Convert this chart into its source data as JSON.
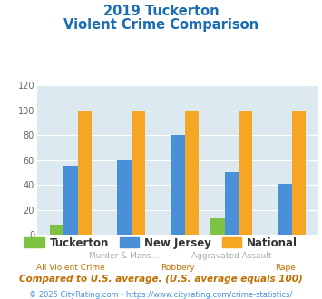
{
  "title_line1": "2019 Tuckerton",
  "title_line2": "Violent Crime Comparison",
  "title_color": "#1a6db5",
  "categories": [
    "All Violent Crime",
    "Murder & Mans...",
    "Robbery",
    "Aggravated Assault",
    "Rape"
  ],
  "top_labels": [
    "",
    "Murder & Mans...",
    "",
    "Aggravated Assault",
    ""
  ],
  "bot_labels": [
    "All Violent Crime",
    "",
    "Robbery",
    "",
    "Rape"
  ],
  "tuckerton": [
    8,
    0,
    0,
    13,
    0
  ],
  "new_jersey": [
    55,
    60,
    80,
    50,
    41
  ],
  "national": [
    100,
    100,
    100,
    100,
    100
  ],
  "tuckerton_color": "#7dc242",
  "nj_color": "#4a90d9",
  "national_color": "#f5a623",
  "ylim": [
    0,
    120
  ],
  "yticks": [
    0,
    20,
    40,
    60,
    80,
    100,
    120
  ],
  "plot_bg": "#dce9f0",
  "fig_bg": "#ffffff",
  "footnote": "Compared to U.S. average. (U.S. average equals 100)",
  "footnote2": "© 2025 CityRating.com - https://www.cityrating.com/crime-statistics/",
  "footnote_color": "#c07000",
  "footnote2_color": "#4a90d9",
  "top_label_color": "#aaaaaa",
  "bot_label_color": "#c07000",
  "legend_labels": [
    "Tuckerton",
    "New Jersey",
    "National"
  ]
}
